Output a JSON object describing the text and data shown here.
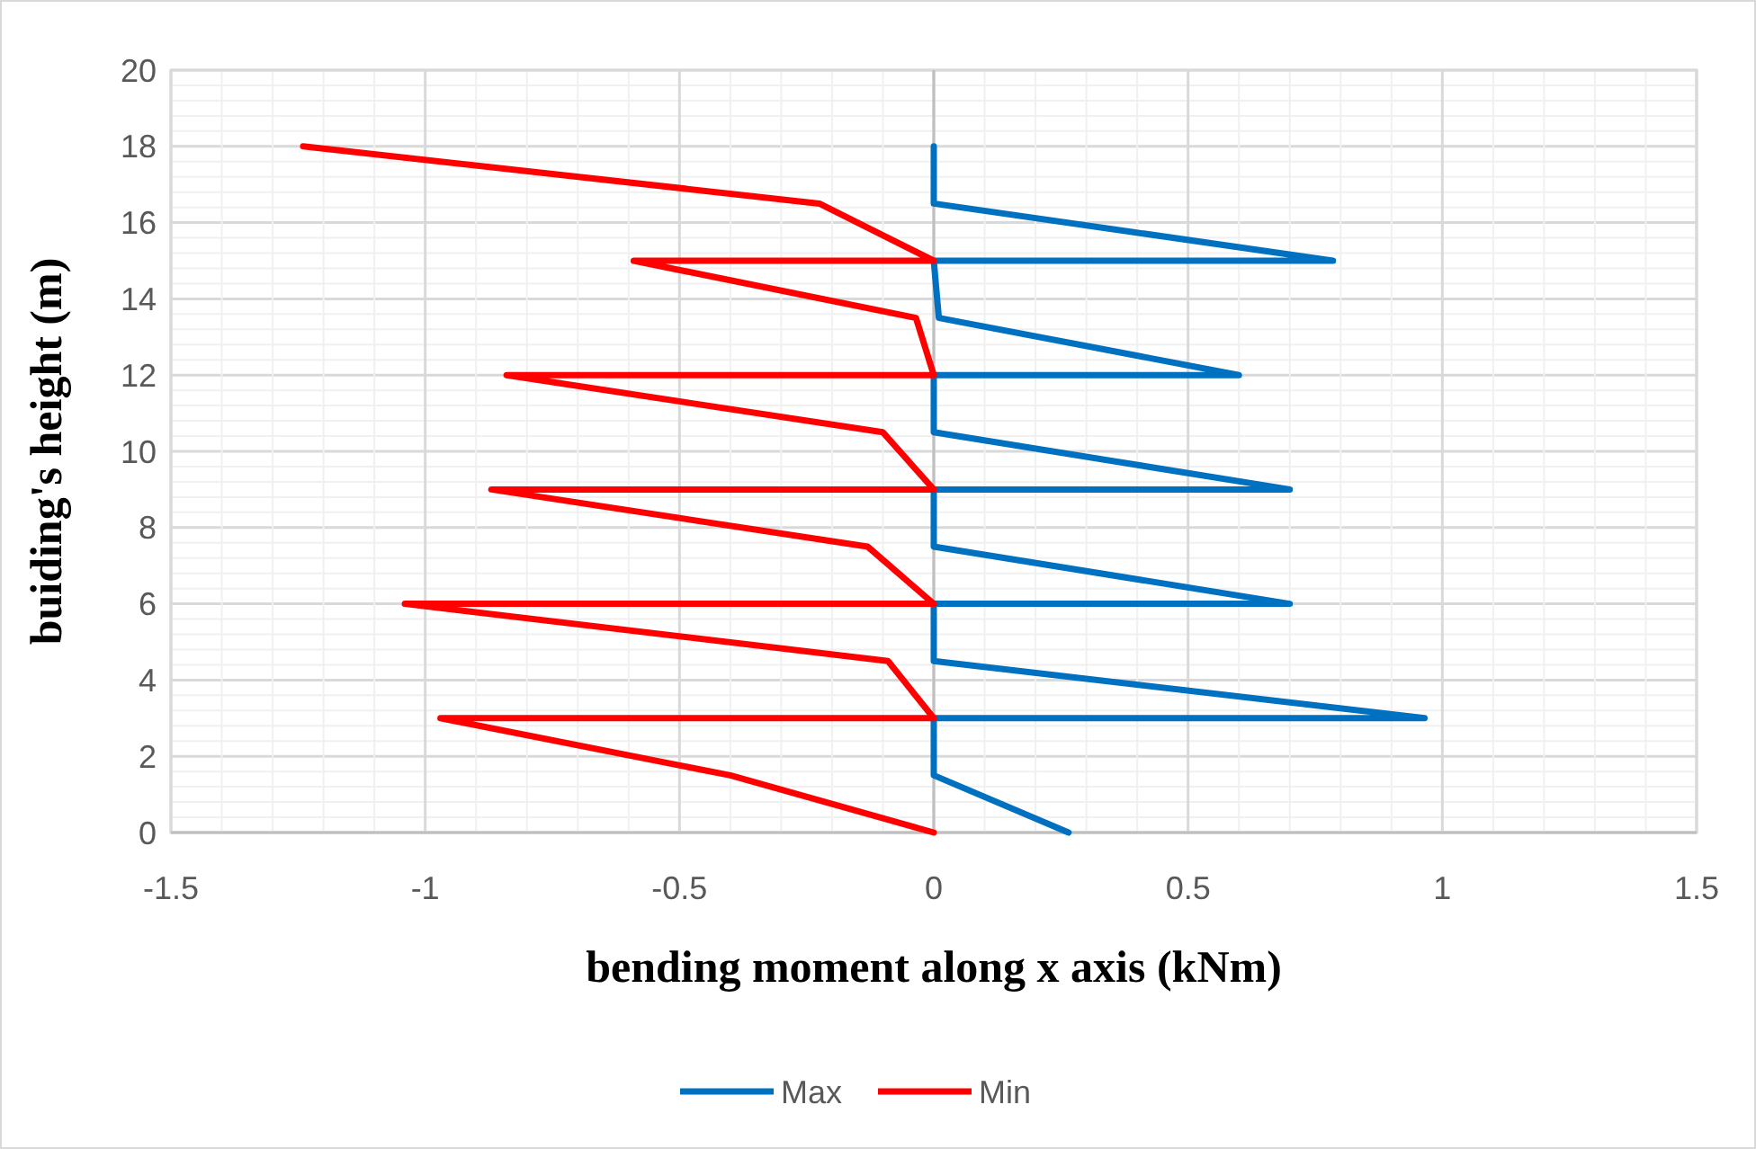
{
  "chart_data": {
    "type": "line",
    "xlabel": "bending moment along x axis (kNm)",
    "ylabel": "buiding's height (m)",
    "xlim": [
      -1.5,
      1.5
    ],
    "ylim": [
      0,
      20
    ],
    "xticks": [
      {
        "value": -1.5,
        "label": "-1.5"
      },
      {
        "value": -1.4,
        "label": null
      },
      {
        "value": -1.3,
        "label": null
      },
      {
        "value": -1.2,
        "label": null
      },
      {
        "value": -1.1,
        "label": null
      },
      {
        "value": -1,
        "label": "-1"
      },
      {
        "value": -0.9,
        "label": null
      },
      {
        "value": -0.8,
        "label": null
      },
      {
        "value": -0.7,
        "label": null
      },
      {
        "value": -0.6,
        "label": null
      },
      {
        "value": -0.5,
        "label": "-0.5"
      },
      {
        "value": -0.4,
        "label": null
      },
      {
        "value": -0.3,
        "label": null
      },
      {
        "value": -0.2,
        "label": null
      },
      {
        "value": -0.1,
        "label": null
      },
      {
        "value": 0,
        "label": "0"
      },
      {
        "value": 0.1,
        "label": null
      },
      {
        "value": 0.2,
        "label": null
      },
      {
        "value": 0.3,
        "label": null
      },
      {
        "value": 0.4,
        "label": null
      },
      {
        "value": 0.5,
        "label": "0.5"
      },
      {
        "value": 0.6,
        "label": null
      },
      {
        "value": 0.7,
        "label": null
      },
      {
        "value": 0.8,
        "label": null
      },
      {
        "value": 0.9,
        "label": null
      },
      {
        "value": 1,
        "label": "1"
      },
      {
        "value": 1.1,
        "label": null
      },
      {
        "value": 1.2,
        "label": null
      },
      {
        "value": 1.3,
        "label": null
      },
      {
        "value": 1.4,
        "label": null
      },
      {
        "value": 1.5,
        "label": "1.5"
      }
    ],
    "yticks": [
      0,
      {
        "value": 0.4,
        "label": null
      },
      {
        "value": 0.8,
        "label": null
      },
      {
        "value": 1.2,
        "label": null
      },
      {
        "value": 1.6,
        "label": null
      },
      2,
      {
        "value": 2.4,
        "label": null
      },
      {
        "value": 2.8,
        "label": null
      },
      {
        "value": 3.2,
        "label": null
      },
      {
        "value": 3.6,
        "label": null
      },
      4,
      {
        "value": 4.4,
        "label": null
      },
      {
        "value": 4.8,
        "label": null
      },
      {
        "value": 5.2,
        "label": null
      },
      {
        "value": 5.6,
        "label": null
      },
      6,
      {
        "value": 6.4,
        "label": null
      },
      {
        "value": 6.8,
        "label": null
      },
      {
        "value": 7.2,
        "label": null
      },
      {
        "value": 7.6,
        "label": null
      },
      8,
      {
        "value": 8.4,
        "label": null
      },
      {
        "value": 8.8,
        "label": null
      },
      {
        "value": 9.2,
        "label": null
      },
      {
        "value": 9.6,
        "label": null
      },
      10,
      {
        "value": 10.4,
        "label": null
      },
      {
        "value": 10.8,
        "label": null
      },
      {
        "value": 11.2,
        "label": null
      },
      {
        "value": 11.6,
        "label": null
      },
      12,
      {
        "value": 12.4,
        "label": null
      },
      {
        "value": 12.8,
        "label": null
      },
      {
        "value": 13.2,
        "label": null
      },
      {
        "value": 13.6,
        "label": null
      },
      14,
      {
        "value": 14.4,
        "label": null
      },
      {
        "value": 14.8,
        "label": null
      },
      {
        "value": 15.2,
        "label": null
      },
      {
        "value": 15.6,
        "label": null
      },
      16,
      {
        "value": 16.4,
        "label": null
      },
      {
        "value": 16.8,
        "label": null
      },
      {
        "value": 17.2,
        "label": null
      },
      {
        "value": 17.6,
        "label": null
      },
      18,
      {
        "value": 18.4,
        "label": null
      },
      {
        "value": 18.8,
        "label": null
      },
      {
        "value": 19.2,
        "label": null
      },
      {
        "value": 19.6,
        "label": null
      },
      20
    ],
    "grid": true,
    "legend": "bottom",
    "marker": "none",
    "line_style": "solid",
    "series": [
      {
        "name": "Max",
        "color": "#0070c0",
        "x": [
          0.265,
          0,
          0,
          0.965,
          0,
          0,
          0.7,
          0,
          0,
          0.7,
          0,
          0,
          0.6,
          0.01,
          0,
          0.785,
          0,
          0
        ],
        "values": [
          0,
          1.5,
          3,
          3,
          4.5,
          6,
          6,
          7.5,
          9,
          9,
          10.5,
          12,
          12,
          13.5,
          15,
          15,
          16.5,
          18
        ]
      },
      {
        "name": "Min",
        "color": "#ff0000",
        "x": [
          0,
          -0.4,
          -0.97,
          0,
          -0.09,
          -1.04,
          0,
          -0.13,
          -0.87,
          0,
          -0.1,
          -0.84,
          0,
          -0.035,
          -0.59,
          0,
          -0.225,
          -1.24
        ],
        "values": [
          0,
          1.5,
          3,
          3,
          4.5,
          6,
          6,
          7.5,
          9,
          9,
          10.5,
          12,
          12,
          13.5,
          15,
          15,
          16.5,
          18
        ]
      }
    ]
  }
}
